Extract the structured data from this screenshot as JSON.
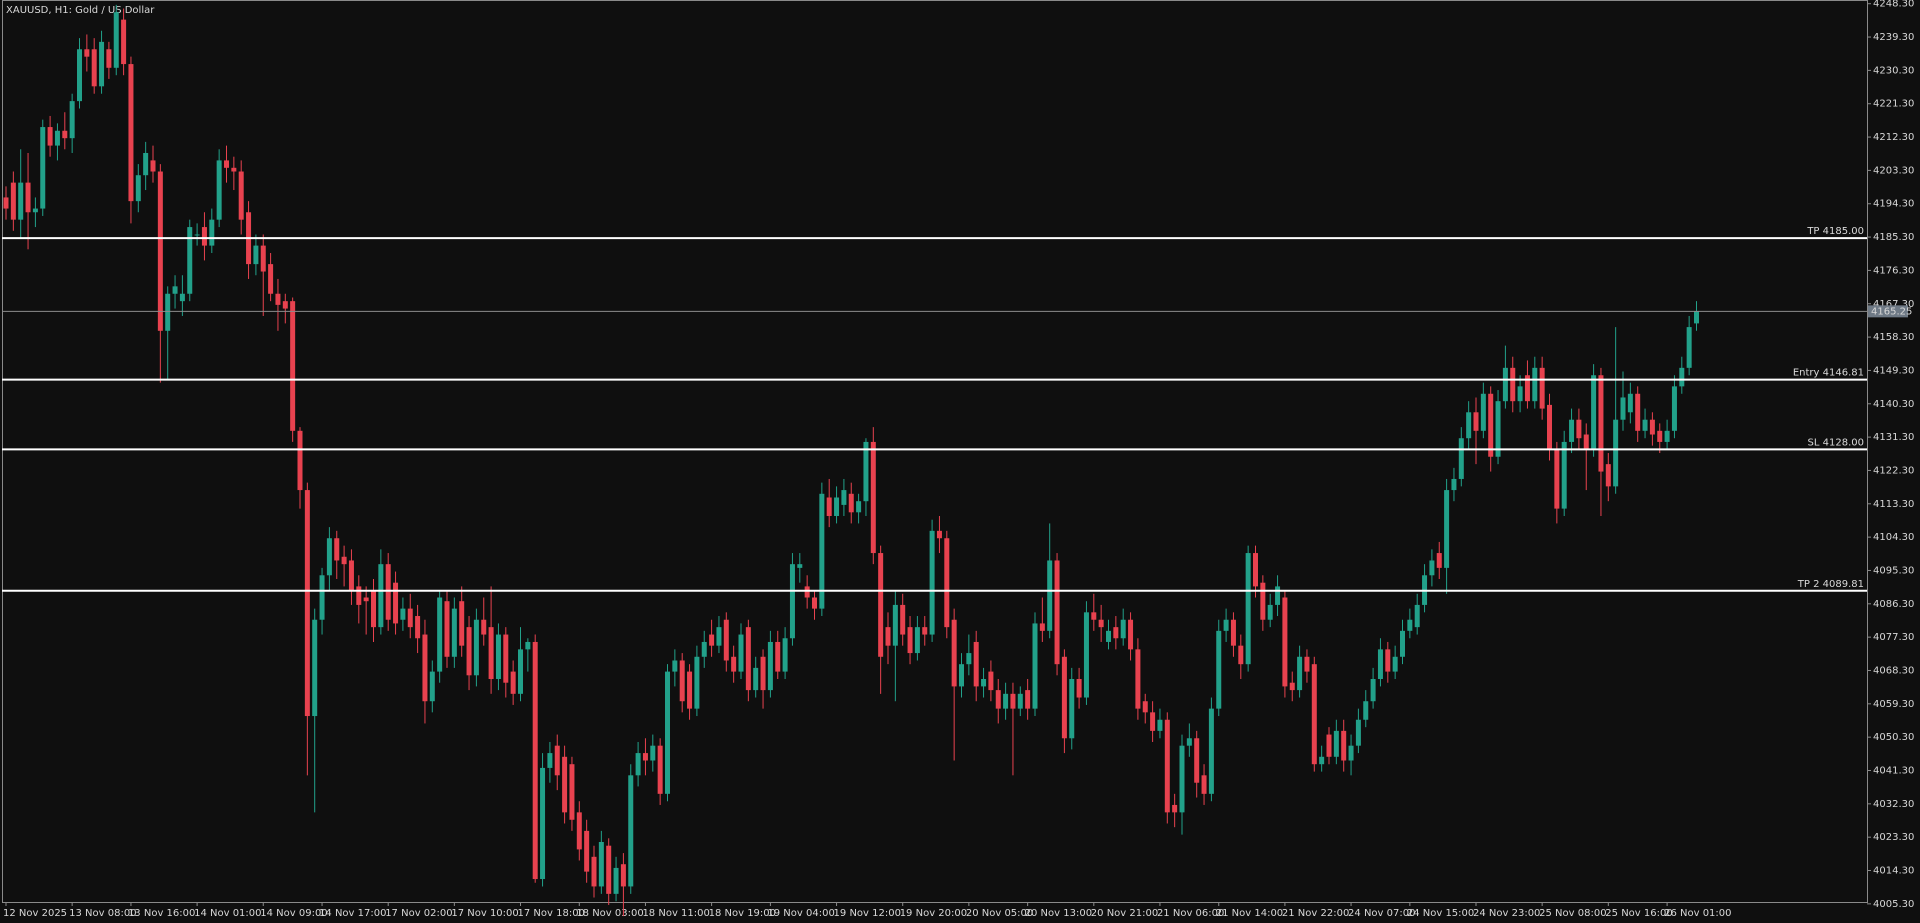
{
  "chart_data": {
    "type": "candlestick",
    "title": "XAUUSD, H1:  Gold / US Dollar",
    "up_color": "#22a18a",
    "down_color": "#e8424f",
    "categories": [
      "12 Nov 2025",
      null,
      null,
      null,
      null,
      null,
      null,
      null,
      null,
      "13 Nov 08:00",
      null,
      null,
      null,
      null,
      null,
      null,
      null,
      "13 Nov 16:00",
      null,
      null,
      null,
      null,
      null,
      null,
      null,
      null,
      "14 Nov 01:00",
      null,
      null,
      null,
      null,
      null,
      null,
      null,
      null,
      "14 Nov 09:00",
      null,
      null,
      null,
      null,
      null,
      null,
      null,
      "14 Nov 17:00",
      null,
      null,
      null,
      null,
      null,
      null,
      null,
      null,
      "17 Nov 02:00",
      null,
      null,
      null,
      null,
      null,
      null,
      null,
      null,
      "17 Nov 10:00",
      null,
      null,
      null,
      null,
      null,
      null,
      null,
      null,
      "17 Nov 18:00",
      null,
      null,
      null,
      null,
      null,
      null,
      null,
      "18 Nov 03:00",
      null,
      null,
      null,
      null,
      null,
      null,
      null,
      null,
      "18 Nov 11:00",
      null,
      null,
      null,
      null,
      null,
      null,
      null,
      null,
      "18 Nov 19:00",
      null,
      null,
      null,
      null,
      null,
      null,
      null,
      "19 Nov 04:00",
      null,
      null,
      null,
      null,
      null,
      null,
      null,
      null,
      "19 Nov 12:00",
      null,
      null,
      null,
      null,
      null,
      null,
      null,
      null,
      "19 Nov 20:00",
      null,
      null,
      null,
      null,
      null,
      null,
      null,
      null,
      "20 Nov 05:00",
      null,
      null,
      null,
      null,
      null,
      null,
      null,
      "20 Nov 13:00",
      null,
      null,
      null,
      null,
      null,
      null,
      null,
      null,
      "20 Nov 21:00",
      null,
      null,
      null,
      null,
      null,
      null,
      null,
      null,
      "21 Nov 06:00",
      null,
      null,
      null,
      null,
      null,
      null,
      null,
      "21 Nov 14:00",
      null,
      null,
      null,
      null,
      null,
      null,
      null,
      null,
      "21 Nov 22:00",
      null,
      null,
      null,
      null,
      null,
      null,
      null,
      null,
      "24 Nov 07:00",
      null,
      null,
      null,
      null,
      null,
      null,
      null,
      "24 Nov 15:00",
      null,
      null,
      null,
      null,
      null,
      null,
      null,
      null,
      "24 Nov 23:00",
      null,
      null,
      null,
      null,
      null,
      null,
      null,
      null,
      "25 Nov 08:00",
      null,
      null,
      null,
      null,
      null,
      null,
      null,
      null,
      "25 Nov 16:00",
      null,
      null,
      null,
      null,
      null,
      null,
      null,
      "26 Nov 01:00",
      null,
      null,
      null,
      null
    ],
    "open": [
      4196,
      4200,
      4190,
      4200,
      4192,
      4193,
      4215,
      4210,
      4214,
      4212,
      4222,
      4236,
      4236,
      4226,
      4236,
      4231,
      4244,
      4232,
      4195,
      4202,
      4206,
      4203,
      4160,
      4170,
      4168,
      4170,
      4186,
      4188,
      4183,
      4190,
      4206,
      4204,
      4203,
      4192,
      4178,
      4183,
      4178,
      4170,
      4168,
      4168,
      4133,
      4117,
      4056,
      4082,
      4094,
      4104,
      4099,
      4098,
      4091,
      4088,
      4090,
      4080,
      4097,
      4092,
      4082,
      4085,
      4083,
      4078,
      4060,
      4068,
      4087,
      4072,
      4087,
      4080,
      4067,
      4082,
      4080,
      4066,
      4078,
      4068,
      4062,
      4074,
      4076,
      4012,
      4042,
      4048,
      4045,
      4043,
      4030,
      4025,
      4018,
      4010,
      4021,
      4008,
      4016,
      4010,
      4040,
      4046,
      4044,
      4048,
      4035,
      4068,
      4071,
      4068,
      4058,
      4072,
      4078,
      4075,
      4082,
      4072,
      4068,
      4080,
      4063,
      4072,
      4063,
      4076,
      4068,
      4077,
      4096,
      4091,
      4088,
      4085,
      4115,
      4110,
      4113,
      4116,
      4111,
      4114,
      4130,
      4100,
      4080,
      4075,
      4086,
      4080,
      4073,
      4080,
      4078,
      4106,
      4104,
      4082,
      4064,
      4070,
      4076,
      4064,
      4068,
      4063,
      4058,
      4062,
      4058,
      4063,
      4058,
      4081,
      4079,
      4098,
      4072,
      4050,
      4066,
      4061,
      4084,
      4082,
      4076,
      4080,
      4077,
      4082,
      4074,
      4060,
      4057,
      4052,
      4055,
      4032,
      4030,
      4048,
      4050,
      4040,
      4035,
      4058,
      4079,
      4082,
      4075,
      4070,
      4100,
      4092,
      4082,
      4086,
      4088,
      4065,
      4063,
      4072,
      4070,
      4043,
      4051,
      4045,
      4052,
      4044,
      4048,
      4055,
      4060,
      4066,
      4074,
      4068,
      4072,
      4079,
      4080,
      4086,
      4094,
      4100,
      4096,
      4117,
      4120,
      4131,
      4138,
      4133,
      4143,
      4126,
      4141,
      4150,
      4141,
      4148,
      4141,
      4150,
      4140,
      4128,
      4112,
      4130,
      4136,
      4132,
      4128,
      4148,
      4124,
      4118,
      4136,
      4138,
      4143,
      4133,
      4136,
      4133,
      4130,
      4133,
      4145,
      4150,
      4162
    ],
    "high": [
      4199,
      4203,
      4209,
      4208,
      4196,
      4217,
      4218,
      4216,
      4219,
      4224,
      4239,
      4240,
      4239,
      4241,
      4238,
      4248,
      4247,
      4234,
      4205,
      4211,
      4210,
      4205,
      4172,
      4175,
      4175,
      4190,
      4189,
      4192,
      4193,
      4209,
      4210,
      4207,
      4206,
      4195,
      4186,
      4186,
      4181,
      4174,
      4170,
      4169,
      4134,
      4119,
      4085,
      4096,
      4107,
      4106,
      4102,
      4101,
      4094,
      4091,
      4093,
      4101,
      4100,
      4095,
      4088,
      4089,
      4086,
      4082,
      4071,
      4090,
      4090,
      4088,
      4091,
      4083,
      4085,
      4088,
      4091,
      4081,
      4080,
      4071,
      4080,
      4077,
      4078,
      4046,
      4049,
      4051,
      4048,
      4045,
      4033,
      4028,
      4021,
      4025,
      4023,
      4018,
      4019,
      4043,
      4049,
      4050,
      4051,
      4050,
      4070,
      4074,
      4073,
      4070,
      4075,
      4079,
      4082,
      4083,
      4084,
      4075,
      4081,
      4082,
      4072,
      4074,
      4079,
      4079,
      4080,
      4100,
      4100,
      4094,
      4090,
      4119,
      4120,
      4118,
      4120,
      4119,
      4116,
      4131,
      4134,
      4102,
      4084,
      4090,
      4089,
      4083,
      4083,
      4083,
      4109,
      4110,
      4106,
      4085,
      4073,
      4078,
      4079,
      4069,
      4071,
      4066,
      4065,
      4065,
      4064,
      4066,
      4084,
      4088,
      4108,
      4100,
      4074,
      4069,
      4069,
      4087,
      4089,
      4086,
      4082,
      4083,
      4085,
      4084,
      4077,
      4062,
      4060,
      4058,
      4057,
      4035,
      4051,
      4054,
      4052,
      4043,
      4061,
      4082,
      4085,
      4084,
      4078,
      4102,
      4102,
      4094,
      4089,
      4094,
      4090,
      4068,
      4075,
      4074,
      4072,
      4048,
      4053,
      4055,
      4055,
      4051,
      4058,
      4063,
      4069,
      4077,
      4076,
      4075,
      4082,
      4085,
      4089,
      4097,
      4101,
      4103,
      4120,
      4123,
      4134,
      4141,
      4142,
      4146,
      4145,
      4144,
      4156,
      4153,
      4148,
      4152,
      4153,
      4153,
      4143,
      4130,
      4133,
      4139,
      4139,
      4135,
      4151,
      4150,
      4127,
      4161,
      4149,
      4146,
      4145,
      4139,
      4138,
      4135,
      4136,
      4148,
      4153,
      4164,
      4168
    ],
    "low": [
      4190,
      4187,
      4185,
      4182,
      4188,
      4191,
      4207,
      4206,
      4209,
      4208,
      4220,
      4230,
      4224,
      4224,
      4228,
      4229,
      4229,
      4189,
      4192,
      4198,
      4200,
      4146,
      4147,
      4166,
      4164,
      4168,
      4183,
      4179,
      4181,
      4188,
      4200,
      4198,
      4186,
      4174,
      4175,
      4164,
      4168,
      4160,
      4162,
      4130,
      4112,
      4040,
      4030,
      4078,
      4090,
      4093,
      4091,
      4086,
      4081,
      4078,
      4076,
      4078,
      4079,
      4078,
      4079,
      4077,
      4073,
      4054,
      4057,
      4065,
      4069,
      4069,
      4072,
      4063,
      4064,
      4075,
      4062,
      4063,
      4061,
      4059,
      4060,
      4068,
      4011,
      4010,
      4038,
      4036,
      4027,
      4025,
      4017,
      4011,
      4007,
      4008,
      4005,
      4006,
      4002,
      4008,
      4037,
      4040,
      4041,
      4032,
      4033,
      4064,
      4057,
      4055,
      4056,
      4069,
      4072,
      4073,
      4068,
      4065,
      4066,
      4060,
      4061,
      4058,
      4061,
      4066,
      4066,
      4075,
      4092,
      4085,
      4082,
      4083,
      4107,
      4108,
      4110,
      4108,
      4108,
      4110,
      4097,
      4062,
      4070,
      4060,
      4075,
      4070,
      4071,
      4075,
      4076,
      4100,
      4077,
      4044,
      4061,
      4067,
      4060,
      4061,
      4060,
      4054,
      4055,
      4040,
      4056,
      4055,
      4056,
      4076,
      4077,
      4067,
      4046,
      4047,
      4058,
      4059,
      4079,
      4076,
      4074,
      4074,
      4075,
      4071,
      4055,
      4054,
      4049,
      4050,
      4027,
      4026,
      4024,
      4045,
      4034,
      4032,
      4033,
      4056,
      4076,
      4072,
      4066,
      4068,
      4088,
      4079,
      4080,
      4083,
      4061,
      4060,
      4061,
      4065,
      4041,
      4041,
      4043,
      4043,
      4041,
      4040,
      4046,
      4053,
      4058,
      4064,
      4065,
      4066,
      4070,
      4077,
      4078,
      4084,
      4091,
      4093,
      4089,
      4114,
      4118,
      4128,
      4124,
      4131,
      4122,
      4124,
      4139,
      4138,
      4138,
      4139,
      4139,
      4136,
      4125,
      4108,
      4110,
      4127,
      4128,
      4117,
      4126,
      4110,
      4114,
      4116,
      4133,
      4135,
      4130,
      4131,
      4129,
      4127,
      4128,
      4131,
      4143,
      4148,
      4160
    ],
    "close": [
      4193,
      4190,
      4200,
      4192,
      4193,
      4215,
      4210,
      4214,
      4212,
      4222,
      4236,
      4234,
      4226,
      4238,
      4231,
      4246,
      4232,
      4195,
      4202,
      4208,
      4203,
      4160,
      4170,
      4172,
      4170,
      4188,
      4186,
      4183,
      4190,
      4206,
      4204,
      4203,
      4190,
      4178,
      4183,
      4176,
      4170,
      4167,
      4166,
      4133,
      4117,
      4056,
      4082,
      4094,
      4104,
      4098,
      4097,
      4090,
      4086,
      4087,
      4080,
      4097,
      4082,
      4081,
      4085,
      4080,
      4077,
      4060,
      4068,
      4088,
      4072,
      4085,
      4075,
      4067,
      4082,
      4078,
      4066,
      4078,
      4065,
      4062,
      4074,
      4076,
      4012,
      4042,
      4046,
      4040,
      4030,
      4028,
      4020,
      4014,
      4010,
      4022,
      4008,
      4015,
      4010,
      4040,
      4046,
      4044,
      4048,
      4035,
      4068,
      4071,
      4060,
      4058,
      4072,
      4076,
      4075,
      4080,
      4071,
      4068,
      4078,
      4063,
      4069,
      4063,
      4076,
      4068,
      4077,
      4097,
      4097,
      4088,
      4085,
      4116,
      4110,
      4115,
      4117,
      4111,
      4114,
      4130,
      4100,
      4072,
      4075,
      4086,
      4078,
      4073,
      4080,
      4078,
      4106,
      4104,
      4080,
      4064,
      4070,
      4073,
      4064,
      4066,
      4063,
      4058,
      4062,
      4058,
      4062,
      4058,
      4081,
      4079,
      4098,
      4070,
      4050,
      4066,
      4061,
      4084,
      4082,
      4080,
      4079,
      4077,
      4082,
      4074,
      4058,
      4057,
      4052,
      4055,
      4030,
      4030,
      4048,
      4050,
      4038,
      4035,
      4058,
      4079,
      4082,
      4075,
      4070,
      4100,
      4091,
      4082,
      4086,
      4091,
      4064,
      4063,
      4072,
      4068,
      4043,
      4045,
      4045,
      4052,
      4044,
      4048,
      4055,
      4060,
      4066,
      4074,
      4068,
      4072,
      4079,
      4082,
      4086,
      4094,
      4098,
      4096,
      4117,
      4120,
      4131,
      4138,
      4133,
      4143,
      4126,
      4141,
      4150,
      4141,
      4145,
      4141,
      4150,
      4139,
      4128,
      4112,
      4130,
      4136,
      4131,
      4128,
      4148,
      4122,
      4118,
      4136,
      4142,
      4143,
      4133,
      4136,
      4132,
      4130,
      4133,
      4145,
      4150,
      4161,
      4165.25
    ],
    "ylim": [
      4005.8,
      4249.3
    ],
    "yticks": [
      {
        "value": 4248.3,
        "label": "4248.30"
      },
      {
        "value": 4239.3,
        "label": "4239.30"
      },
      {
        "value": 4230.3,
        "label": "4230.30"
      },
      {
        "value": 4221.3,
        "label": "4221.30"
      },
      {
        "value": 4212.3,
        "label": "4212.30"
      },
      {
        "value": 4203.3,
        "label": "4203.30"
      },
      {
        "value": 4194.3,
        "label": "4194.30"
      },
      {
        "value": 4185.3,
        "label": "4185.30"
      },
      {
        "value": 4176.3,
        "label": "4176.30"
      },
      {
        "value": 4167.3,
        "label": "4167.30"
      },
      {
        "value": 4158.3,
        "label": "4158.30"
      },
      {
        "value": 4149.3,
        "label": "4149.30"
      },
      {
        "value": 4140.3,
        "label": "4140.30"
      },
      {
        "value": 4131.3,
        "label": "4131.30"
      },
      {
        "value": 4122.3,
        "label": "4122.30"
      },
      {
        "value": 4113.3,
        "label": "4113.30"
      },
      {
        "value": 4104.3,
        "label": "4104.30"
      },
      {
        "value": 4095.3,
        "label": "4095.30"
      },
      {
        "value": 4086.3,
        "label": "4086.30"
      },
      {
        "value": 4077.3,
        "label": "4077.30"
      },
      {
        "value": 4068.3,
        "label": "4068.30"
      },
      {
        "value": 4059.3,
        "label": "4059.30"
      },
      {
        "value": 4050.3,
        "label": "4050.30"
      },
      {
        "value": 4041.3,
        "label": "4041.30"
      },
      {
        "value": 4032.3,
        "label": "4032.30"
      },
      {
        "value": 4023.3,
        "label": "4023.30"
      },
      {
        "value": 4014.3,
        "label": "4014.30"
      },
      {
        "value": 4005.3,
        "label": "4005.30"
      }
    ],
    "levels": [
      {
        "label": "TP 4185.00",
        "value": 4185
      },
      {
        "label": "Entry 4146.81",
        "value": 4146.81
      },
      {
        "label": "SL 4128.00",
        "value": 4128
      },
      {
        "label": "TP 2 4089.81",
        "value": 4089.81
      }
    ],
    "current_price": {
      "value": 4165.25,
      "label": "4165.25"
    },
    "grid": false
  }
}
